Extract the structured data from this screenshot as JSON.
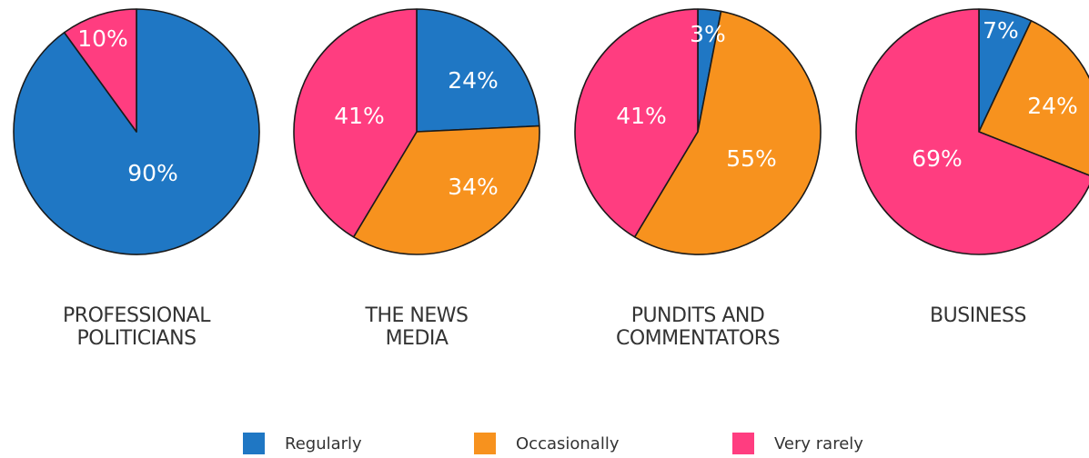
{
  "chart_data": {
    "type": "pie",
    "categories": [
      "Regularly",
      "Occasionally",
      "Very rarely"
    ],
    "colors": [
      "#1f77c4",
      "#f7921e",
      "#ff3d80"
    ],
    "pies": [
      {
        "name_lines": [
          "PROFESSIONAL",
          "POLITICIANS"
        ],
        "values": [
          90,
          0,
          10
        ],
        "labels": [
          "90%",
          "",
          "10%"
        ]
      },
      {
        "name_lines": [
          "THE NEWS",
          "MEDIA"
        ],
        "values": [
          24,
          34,
          41
        ],
        "labels": [
          "24%",
          "34%",
          "41%"
        ]
      },
      {
        "name_lines": [
          "PUNDITS AND",
          "COMMENTATORS"
        ],
        "values": [
          3,
          55,
          41
        ],
        "labels": [
          "3%",
          "55%",
          "41%"
        ]
      },
      {
        "name_lines": [
          "BUSINESS"
        ],
        "values": [
          7,
          24,
          69
        ],
        "labels": [
          "7%",
          "24%",
          "69%"
        ]
      }
    ],
    "legend": {
      "position": "bottom",
      "items": [
        "Regularly",
        "Occasionally",
        "Very rarely"
      ]
    }
  }
}
